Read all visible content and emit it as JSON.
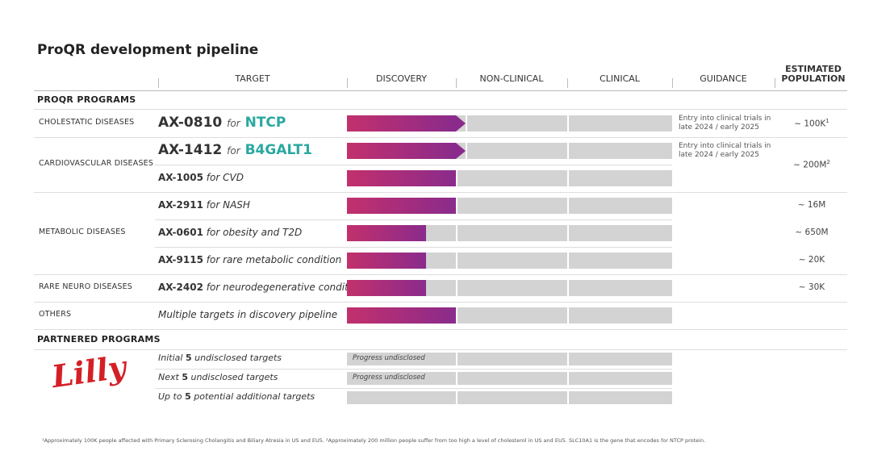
{
  "title": "ProQR development pipeline",
  "headers": [
    "TARGET",
    "DISCOVERY",
    "NON-CLINICAL",
    "CLINICAL",
    "GUIDANCE",
    "ESTIMATED POPULATION"
  ],
  "proqr": {
    "title": "PROQR PROGRAMS",
    "groups": [
      {
        "label": "CHOLESTATIC DISEASES",
        "rows": [
          {
            "target": [
              "AX-0810",
              "for",
              "NTCP"
            ],
            "guidance": "Entry into clinical trials in late 2024 / early 2025",
            "population": {
              "text": "~ 100K",
              "note": "1"
            }
          }
        ]
      },
      {
        "label": "CARDIOVASCULAR DISEASES",
        "population": {
          "text": "~ 200M",
          "note": "2"
        },
        "rows": [
          {
            "target": [
              "AX-1412",
              "for",
              "B4GALT1"
            ],
            "guidance": "Entry into clinical trials in late 2024 / early 2025"
          },
          {
            "target": [
              "AX-1005",
              "for",
              "CVD"
            ]
          }
        ]
      },
      {
        "label": "METABOLIC DISEASES",
        "rows": [
          {
            "target": [
              "AX-2911",
              "for",
              "NASH"
            ],
            "population": {
              "text": "~ 16M"
            }
          },
          {
            "target": [
              "AX-0601",
              "for",
              "obesity and T2D"
            ],
            "population": {
              "text": "~ 650M"
            }
          },
          {
            "target": [
              "AX-9115",
              "for",
              "rare metabolic condition"
            ],
            "population": {
              "text": "~ 20K"
            }
          }
        ]
      },
      {
        "label": "RARE NEURO DISEASES",
        "rows": [
          {
            "target": [
              "AX-2402",
              "for",
              "neurodegenerative condition"
            ],
            "population": {
              "text": "~ 30K"
            }
          }
        ]
      },
      {
        "label": "OTHERS",
        "rows": [
          {
            "target": [
              "Multiple targets in discovery pipeline"
            ]
          }
        ]
      }
    ]
  },
  "partnered": {
    "title": "PARTNERED PROGRAMS",
    "partner": "Lilly",
    "rows": [
      {
        "target": [
          "Initial",
          "5",
          "undisclosed targets"
        ],
        "status": "Progress undisclosed"
      },
      {
        "target": [
          "Next",
          "5",
          "undisclosed targets"
        ],
        "status": "Progress undisclosed"
      },
      {
        "target": [
          "Up to",
          "5",
          "potential additional targets"
        ]
      }
    ]
  },
  "footnote": "¹Approximately 100K people affected with Primary Sclerosing Cholangitis and Biliary Atresia in US and EU5. ²Approximately 200 million people suffer from too high a level of cholesterol in US and EU5. SLC10A1 is the gene that encodes for NTCP protein."
}
